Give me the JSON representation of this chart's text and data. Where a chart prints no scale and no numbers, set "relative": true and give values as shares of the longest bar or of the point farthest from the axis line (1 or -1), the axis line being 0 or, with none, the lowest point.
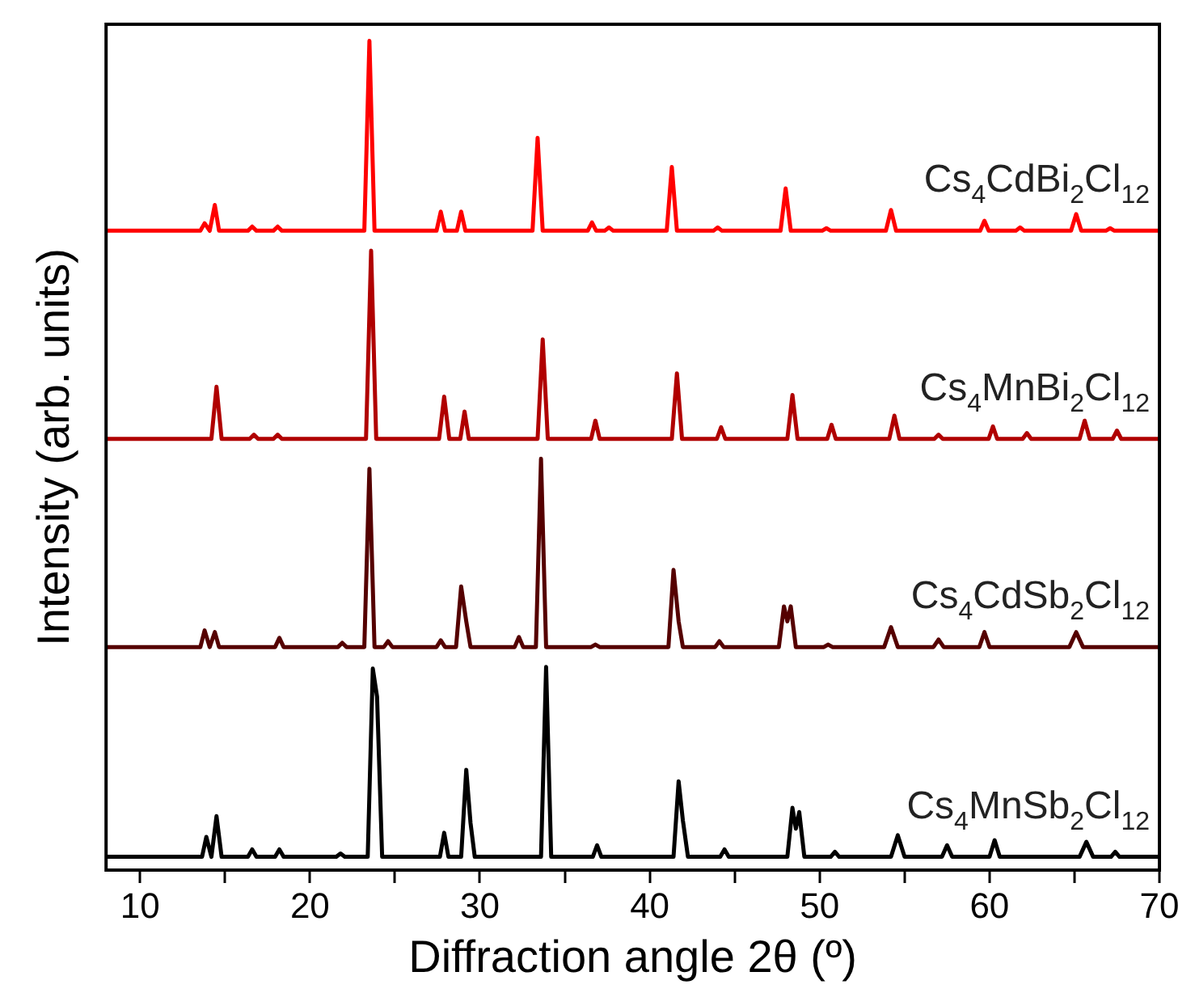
{
  "chart_data": {
    "type": "line",
    "relative": true,
    "xlabel": "Diffraction angle 2θ (º)",
    "ylabel": "Intensity (arb. units)",
    "xlim": [
      8,
      70
    ],
    "xticks": [
      10,
      {
        "value": 15,
        "label": null
      },
      20,
      {
        "value": 25,
        "label": null
      },
      30,
      {
        "value": 35,
        "label": null
      },
      40,
      {
        "value": 45,
        "label": null
      },
      50,
      {
        "value": 55,
        "label": null
      },
      60,
      {
        "value": 65,
        "label": null
      },
      70
    ],
    "grid": false,
    "legend": false,
    "marker": "none",
    "line_style": "solid",
    "series": [
      {
        "name": "Cs$_{4}$CdBi$_{2}$Cl$_{12}$",
        "color": "#ff0000",
        "x": [
          8,
          13.55,
          13.8,
          14.1,
          14.4,
          14.65,
          16.35,
          16.6,
          16.85,
          17.85,
          18.1,
          18.35,
          23.2,
          23.5,
          23.8,
          27.45,
          27.7,
          27.95,
          28.65,
          28.9,
          29.15,
          33.1,
          33.4,
          33.7,
          36.35,
          36.6,
          36.85,
          37.35,
          37.6,
          37.85,
          41.0,
          41.3,
          41.6,
          43.75,
          44.0,
          44.25,
          47.7,
          48.0,
          48.3,
          50.15,
          50.4,
          50.65,
          53.9,
          54.2,
          54.5,
          59.45,
          59.7,
          59.95,
          61.55,
          61.8,
          62.05,
          64.8,
          65.1,
          65.4,
          66.85,
          67.1,
          67.35,
          70
        ],
        "values": [
          0.771,
          0.771,
          0.78,
          0.771,
          0.802,
          0.771,
          0.771,
          0.776,
          0.771,
          0.771,
          0.776,
          0.771,
          0.771,
          1,
          0.771,
          0.771,
          0.794,
          0.771,
          0.771,
          0.794,
          0.771,
          0.771,
          0.883,
          0.771,
          0.771,
          0.781,
          0.771,
          0.771,
          0.775,
          0.771,
          0.771,
          0.848,
          0.771,
          0.771,
          0.775,
          0.771,
          0.771,
          0.822,
          0.771,
          0.771,
          0.774,
          0.771,
          0.771,
          0.796,
          0.771,
          0.771,
          0.783,
          0.771,
          0.771,
          0.775,
          0.771,
          0.771,
          0.791,
          0.771,
          0.771,
          0.774,
          0.771,
          0.771
        ]
      },
      {
        "name": "Cs$_{4}$MnBi$_{2}$Cl$_{12}$",
        "color": "#b00000",
        "x": [
          8,
          14.2,
          14.5,
          14.8,
          16.45,
          16.7,
          16.95,
          17.85,
          18.1,
          18.35,
          23.3,
          23.6,
          23.9,
          27.6,
          27.9,
          28.2,
          28.85,
          29.1,
          29.35,
          33.4,
          33.7,
          34.0,
          36.55,
          36.8,
          37.05,
          41.3,
          41.6,
          41.9,
          43.95,
          44.2,
          44.45,
          48.1,
          48.4,
          48.7,
          50.45,
          50.7,
          50.95,
          54.1,
          54.4,
          54.7,
          56.75,
          57.0,
          57.25,
          59.95,
          60.2,
          60.45,
          61.95,
          62.2,
          62.45,
          65.3,
          65.6,
          65.9,
          67.25,
          67.5,
          67.75,
          70
        ],
        "values": [
          0.52,
          0.52,
          0.583,
          0.52,
          0.52,
          0.525,
          0.52,
          0.52,
          0.525,
          0.52,
          0.52,
          0.747,
          0.52,
          0.52,
          0.571,
          0.52,
          0.52,
          0.553,
          0.52,
          0.52,
          0.64,
          0.52,
          0.52,
          0.542,
          0.52,
          0.52,
          0.599,
          0.52,
          0.52,
          0.534,
          0.52,
          0.52,
          0.573,
          0.52,
          0.52,
          0.537,
          0.52,
          0.52,
          0.548,
          0.52,
          0.52,
          0.525,
          0.52,
          0.52,
          0.535,
          0.52,
          0.52,
          0.527,
          0.52,
          0.52,
          0.542,
          0.52,
          0.52,
          0.53,
          0.52,
          0.52
        ]
      },
      {
        "name": "Cs$_{4}$CdSb$_{2}$Cl$_{12}$",
        "color": "#550000",
        "x": [
          8,
          13.55,
          13.8,
          14.1,
          14.4,
          14.65,
          17.95,
          18.2,
          18.45,
          21.65,
          21.9,
          22.15,
          23.2,
          23.5,
          23.8,
          24.35,
          24.6,
          24.85,
          27.45,
          27.7,
          27.95,
          28.6,
          28.9,
          29.2,
          29.45,
          32.05,
          32.3,
          32.55,
          33.3,
          33.6,
          33.9,
          36.55,
          36.8,
          37.05,
          41.1,
          41.4,
          41.7,
          41.95,
          43.85,
          44.1,
          44.35,
          47.6,
          47.9,
          48.1,
          48.3,
          48.6,
          50.25,
          50.5,
          50.75,
          53.8,
          54.2,
          54.6,
          56.7,
          57.0,
          57.3,
          59.4,
          59.7,
          60.0,
          64.7,
          65.1,
          65.5,
          70
        ],
        "values": [
          0.269,
          0.269,
          0.289,
          0.269,
          0.287,
          0.269,
          0.269,
          0.28,
          0.269,
          0.269,
          0.274,
          0.269,
          0.269,
          0.484,
          0.269,
          0.269,
          0.276,
          0.269,
          0.269,
          0.277,
          0.269,
          0.269,
          0.342,
          0.3,
          0.269,
          0.269,
          0.281,
          0.269,
          0.269,
          0.496,
          0.269,
          0.269,
          0.272,
          0.269,
          0.269,
          0.362,
          0.3,
          0.269,
          0.269,
          0.276,
          0.269,
          0.269,
          0.318,
          0.3,
          0.318,
          0.269,
          0.269,
          0.272,
          0.269,
          0.269,
          0.293,
          0.269,
          0.269,
          0.278,
          0.269,
          0.269,
          0.287,
          0.269,
          0.269,
          0.287,
          0.269,
          0.269
        ]
      },
      {
        "name": "Cs$_{4}$MnSb$_{2}$Cl$_{12}$",
        "color": "#000000",
        "x": [
          8,
          13.65,
          13.9,
          14.2,
          14.5,
          14.8,
          16.35,
          16.6,
          16.85,
          17.95,
          18.2,
          18.45,
          21.55,
          21.8,
          22.05,
          23.4,
          23.7,
          23.95,
          24.25,
          27.65,
          27.9,
          28.15,
          28.9,
          29.2,
          29.45,
          29.7,
          33.6,
          33.9,
          34.2,
          36.65,
          36.9,
          37.15,
          41.4,
          41.7,
          41.95,
          42.25,
          44.15,
          44.4,
          44.65,
          48.1,
          48.4,
          48.6,
          48.8,
          49.1,
          50.65,
          50.9,
          51.15,
          54.2,
          54.6,
          55.0,
          57.2,
          57.5,
          57.8,
          60.0,
          60.3,
          60.6,
          65.3,
          65.7,
          66.1,
          67.15,
          67.4,
          67.65,
          70
        ],
        "values": [
          0.016,
          0.016,
          0.04,
          0.016,
          0.065,
          0.016,
          0.016,
          0.025,
          0.016,
          0.016,
          0.025,
          0.016,
          0.016,
          0.02,
          0.016,
          0.016,
          0.243,
          0.209,
          0.016,
          0.016,
          0.045,
          0.016,
          0.016,
          0.121,
          0.057,
          0.016,
          0.016,
          0.245,
          0.016,
          0.016,
          0.03,
          0.016,
          0.016,
          0.107,
          0.06,
          0.016,
          0.016,
          0.025,
          0.016,
          0.016,
          0.075,
          0.05,
          0.07,
          0.016,
          0.016,
          0.022,
          0.016,
          0.016,
          0.042,
          0.016,
          0.016,
          0.03,
          0.016,
          0.016,
          0.036,
          0.016,
          0.016,
          0.034,
          0.016,
          0.016,
          0.022,
          0.016,
          0.016
        ]
      }
    ]
  }
}
